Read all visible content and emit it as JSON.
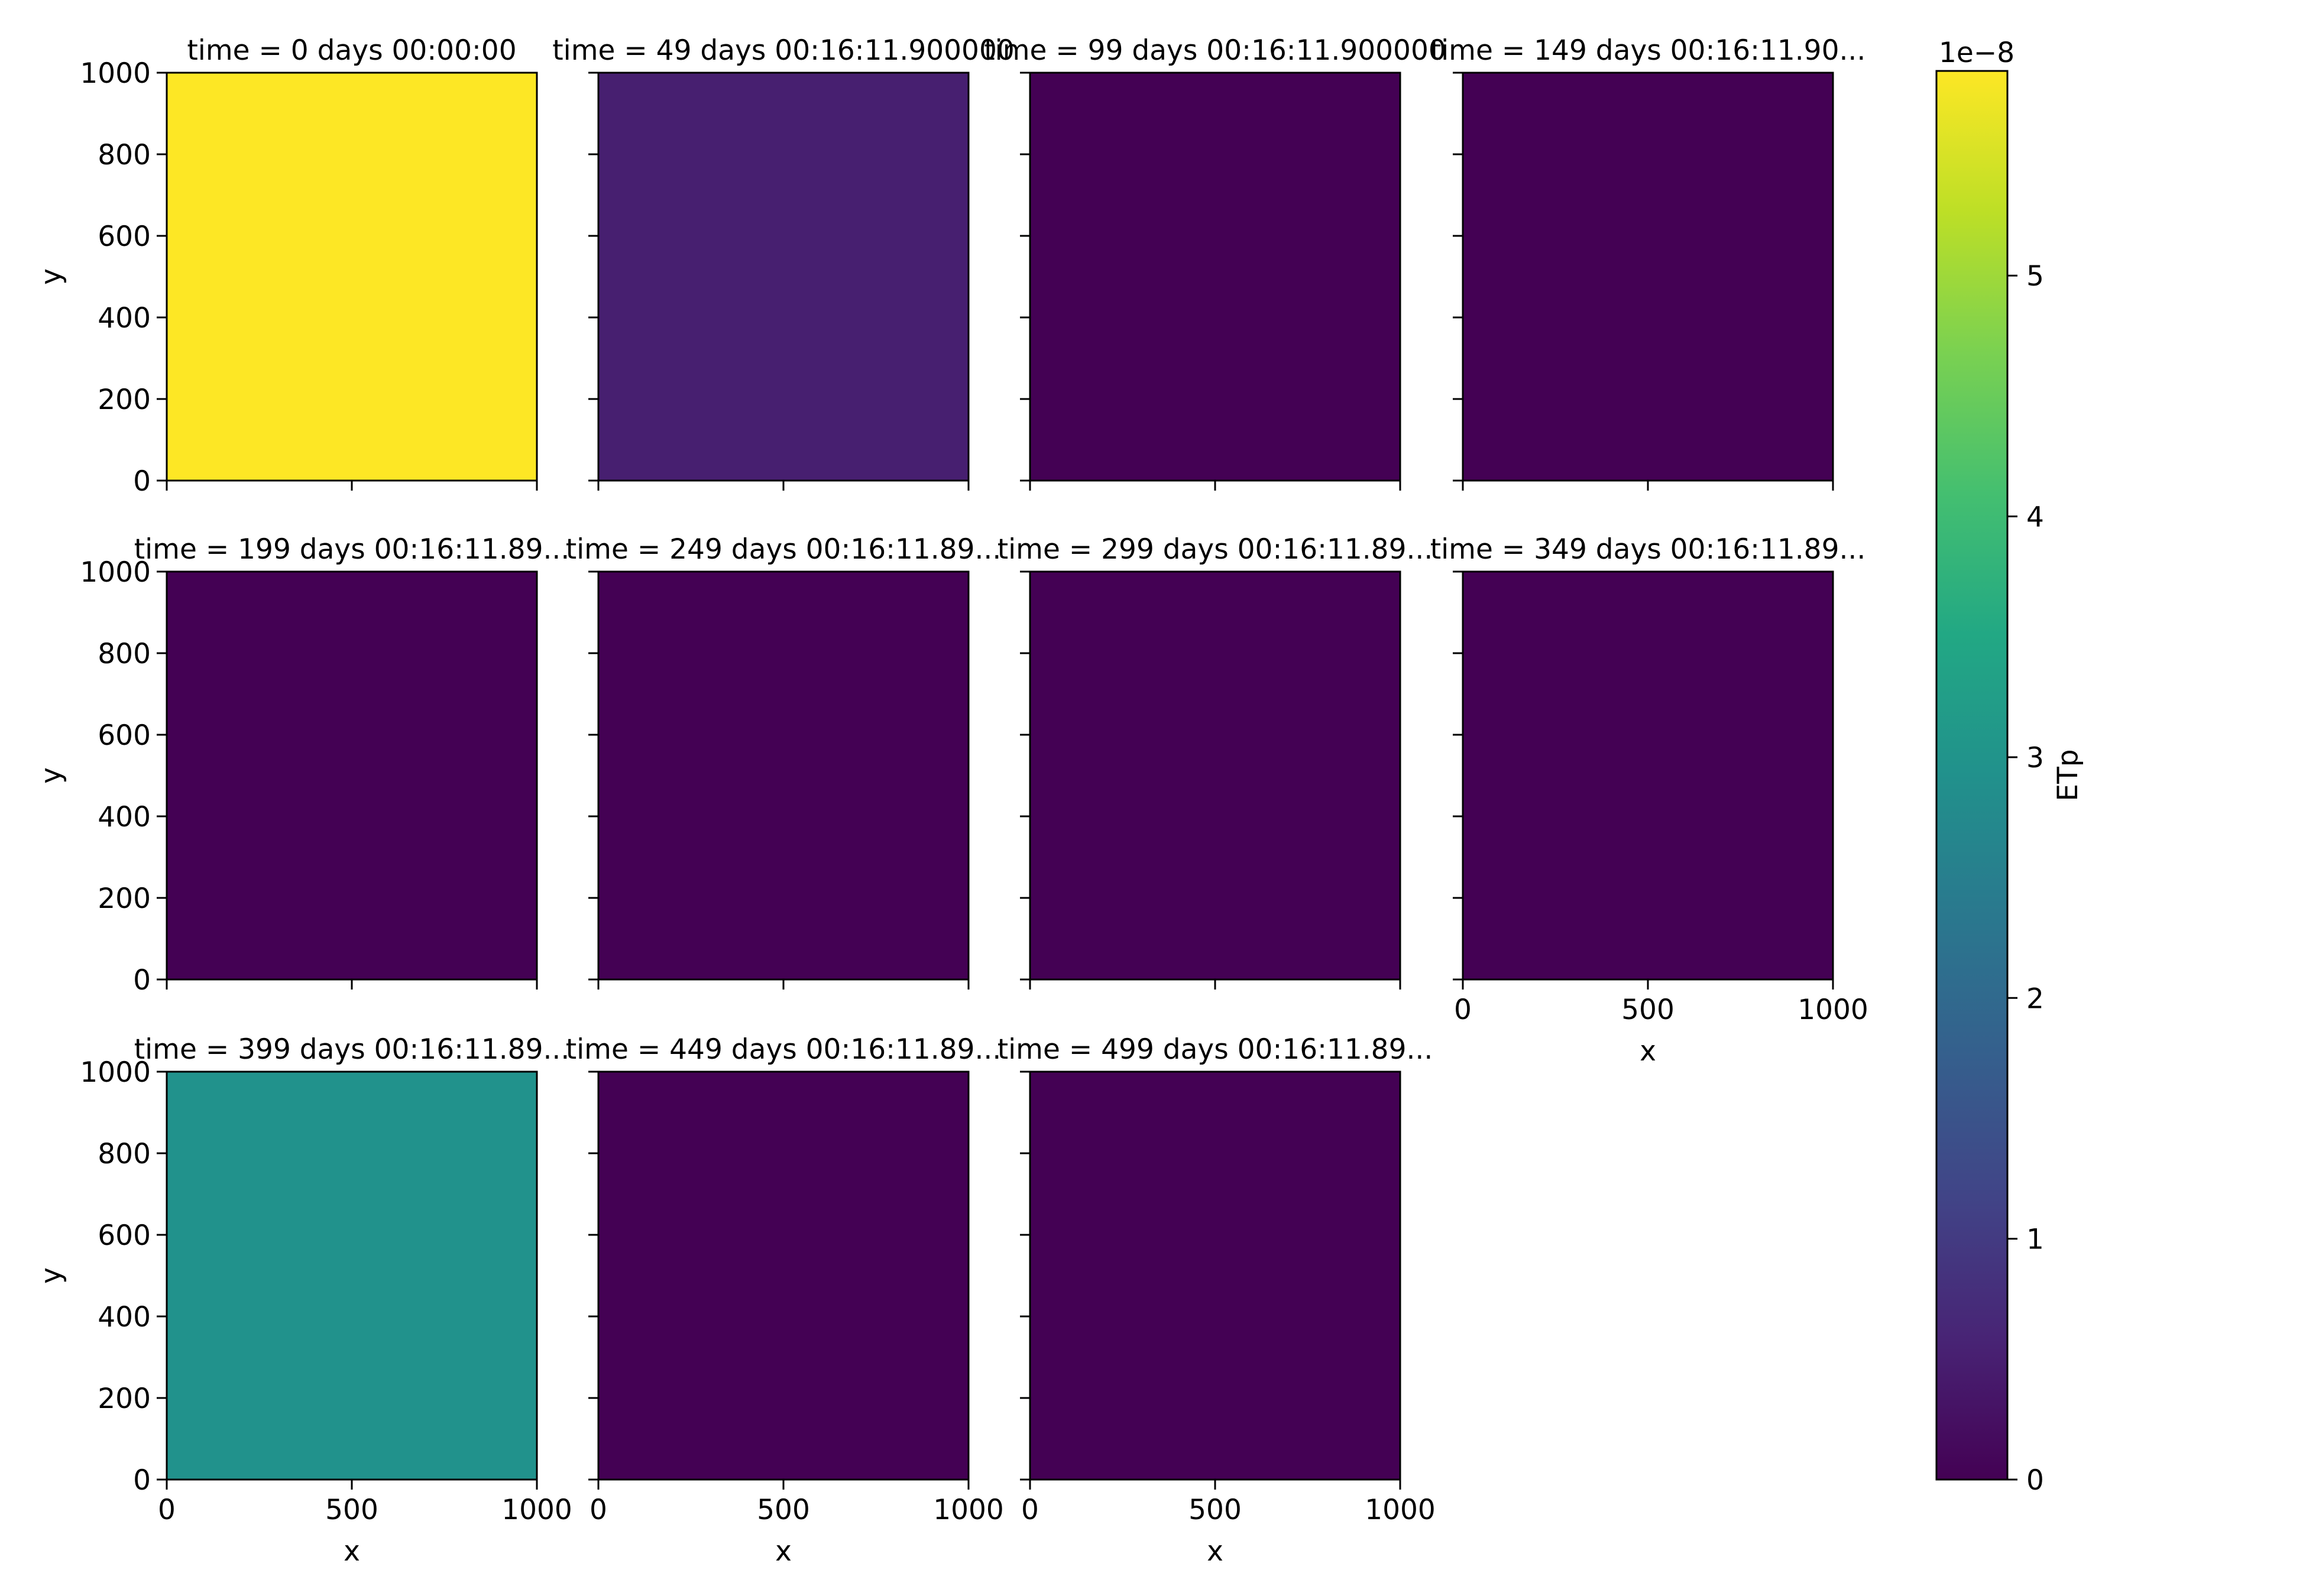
{
  "chart_data": {
    "type": "heatmap",
    "layout": {
      "rows": 3,
      "cols": 4
    },
    "x_range": [
      0,
      1000
    ],
    "y_range": [
      0,
      1000
    ],
    "x_ticks": [
      0,
      500,
      1000
    ],
    "y_ticks": [
      0,
      200,
      400,
      600,
      800,
      1000
    ],
    "xlabel": "x",
    "ylabel": "y",
    "grid": false,
    "colorbar": {
      "label": "ETp",
      "offset_text": "1e−8",
      "colormap": "viridis",
      "range": [
        0,
        5.85
      ],
      "ticks": [
        0,
        1,
        2,
        3,
        4,
        5
      ],
      "scale": "1e-8"
    },
    "panels": [
      {
        "title": "time = 0 days 00:00:00",
        "value": 5.85
      },
      {
        "title": "time = 49 days 00:16:11.900000",
        "value": 0.5
      },
      {
        "title": "time = 99 days 00:16:11.900000",
        "value": 0.0
      },
      {
        "title": "time = 149 days 00:16:11.90...",
        "value": 0.0
      },
      {
        "title": "time = 199 days 00:16:11.89...",
        "value": 0.0
      },
      {
        "title": "time = 249 days 00:16:11.89...",
        "value": 0.0
      },
      {
        "title": "time = 299 days 00:16:11.89...",
        "value": 0.0
      },
      {
        "title": "time = 349 days 00:16:11.89...",
        "value": 0.0
      },
      {
        "title": "time = 399 days 00:16:11.89...",
        "value": 2.95
      },
      {
        "title": "time = 449 days 00:16:11.89...",
        "value": 0.0
      },
      {
        "title": "time = 499 days 00:16:11.89...",
        "value": 0.0
      }
    ]
  }
}
